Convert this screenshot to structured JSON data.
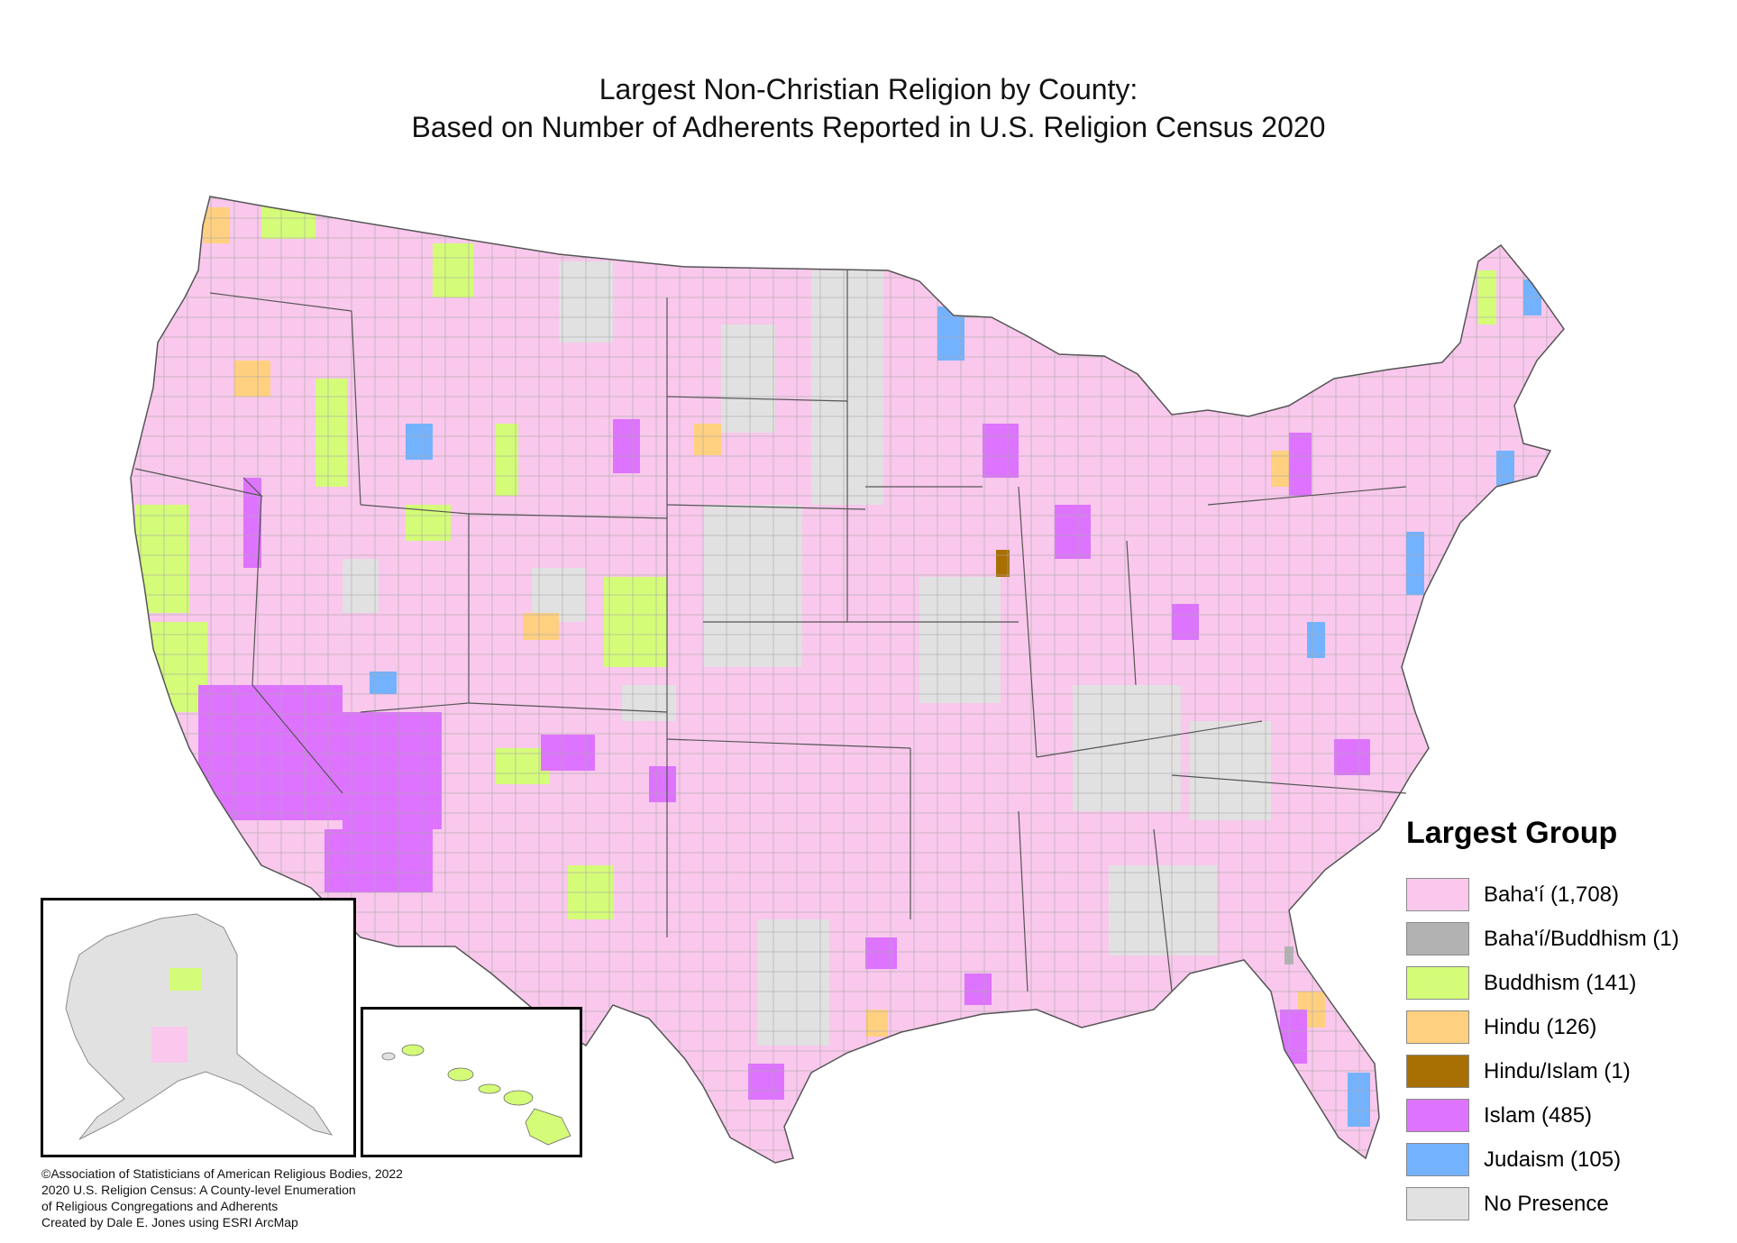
{
  "title": {
    "line1": "Largest Non-Christian Religion by County:",
    "line2": "Based on Number of Adherents Reported in U.S. Religion Census 2020"
  },
  "legend": {
    "title": "Largest Group",
    "items": [
      {
        "label": "Baha'í (1,708)",
        "color": "#f9c8ec"
      },
      {
        "label": "Baha'í/Buddhism (1)",
        "color": "#b2b2b2"
      },
      {
        "label": "Buddhism (141)",
        "color": "#d4fc78"
      },
      {
        "label": "Hindu (126)",
        "color": "#ffd07f"
      },
      {
        "label": "Hindu/Islam (1)",
        "color": "#a86f02"
      },
      {
        "label": "Islam (485)",
        "color": "#de73ff"
      },
      {
        "label": "Judaism (105)",
        "color": "#73b2ff"
      },
      {
        "label": "No Presence",
        "color": "#e1e1e1"
      }
    ]
  },
  "credits": [
    "©Association of Statisticians of American Religious Bodies, 2022",
    "2020 U.S. Religion Census: A County-level Enumeration",
    "of Religious Congregations and Adherents",
    "Created by Dale E. Jones using ESRI ArcMap"
  ],
  "colors": {
    "bahai": "#f9c8ec",
    "buddhism": "#d4fc78",
    "hindu": "#ffd07f",
    "hindu_islam": "#a86f02",
    "islam": "#de73ff",
    "judaism": "#73b2ff",
    "none": "#e1e1e1",
    "border": "#8c8c8c",
    "state_border": "#555555"
  }
}
